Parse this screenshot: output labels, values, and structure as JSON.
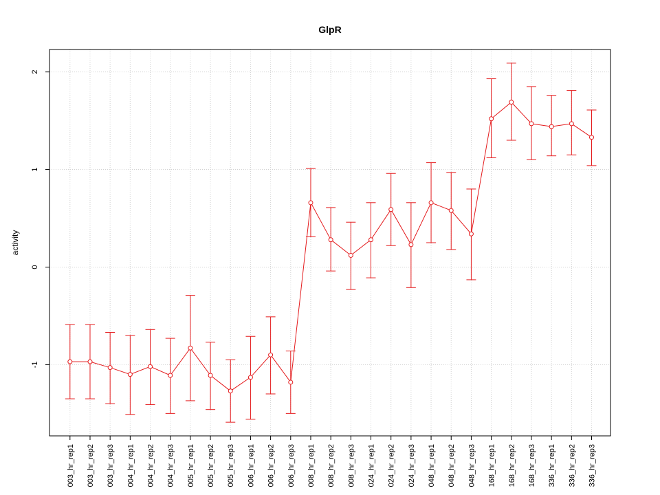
{
  "chart_data": {
    "type": "line",
    "title": "GlpR",
    "xlabel": "",
    "ylabel": "activity",
    "categories": [
      "003_hr_rep1",
      "003_hr_rep2",
      "003_hr_rep3",
      "004_hr_rep1",
      "004_hr_rep2",
      "004_hr_rep3",
      "005_hr_rep1",
      "005_hr_rep2",
      "005_hr_rep3",
      "006_hr_rep1",
      "006_hr_rep2",
      "006_hr_rep3",
      "008_hr_rep1",
      "008_hr_rep2",
      "008_hr_rep3",
      "024_hr_rep1",
      "024_hr_rep2",
      "024_hr_rep3",
      "048_hr_rep1",
      "048_hr_rep2",
      "048_hr_rep3",
      "168_hr_rep1",
      "168_hr_rep2",
      "168_hr_rep3",
      "336_hr_rep1",
      "336_hr_rep2",
      "336_hr_rep3"
    ],
    "values": [
      -0.97,
      -0.97,
      -1.03,
      -1.1,
      -1.02,
      -1.11,
      -0.83,
      -1.11,
      -1.27,
      -1.13,
      -0.9,
      -1.18,
      0.66,
      0.28,
      0.12,
      0.28,
      0.59,
      0.23,
      0.66,
      0.58,
      0.34,
      1.52,
      1.69,
      1.47,
      1.44,
      1.47,
      1.33
    ],
    "lower": [
      -1.35,
      -1.35,
      -1.4,
      -1.51,
      -1.41,
      -1.5,
      -1.37,
      -1.46,
      -1.59,
      -1.56,
      -1.3,
      -1.5,
      0.31,
      -0.04,
      -0.23,
      -0.11,
      0.22,
      -0.21,
      0.25,
      0.18,
      -0.13,
      1.12,
      1.3,
      1.1,
      1.14,
      1.15,
      1.04
    ],
    "upper": [
      -0.59,
      -0.59,
      -0.67,
      -0.7,
      -0.64,
      -0.73,
      -0.29,
      -0.77,
      -0.95,
      -0.71,
      -0.51,
      -0.86,
      1.01,
      0.61,
      0.46,
      0.66,
      0.96,
      0.66,
      1.07,
      0.97,
      0.8,
      1.93,
      2.09,
      1.85,
      1.76,
      1.81,
      1.61
    ],
    "ylim": [
      -1.73,
      2.23
    ],
    "yticks": [
      -1,
      0,
      1,
      2
    ],
    "ytick_labels": [
      "-1",
      "0",
      "1",
      "2"
    ],
    "grid": true,
    "series_color": "#e41a1c",
    "grid_color": "#d3d3d3"
  }
}
